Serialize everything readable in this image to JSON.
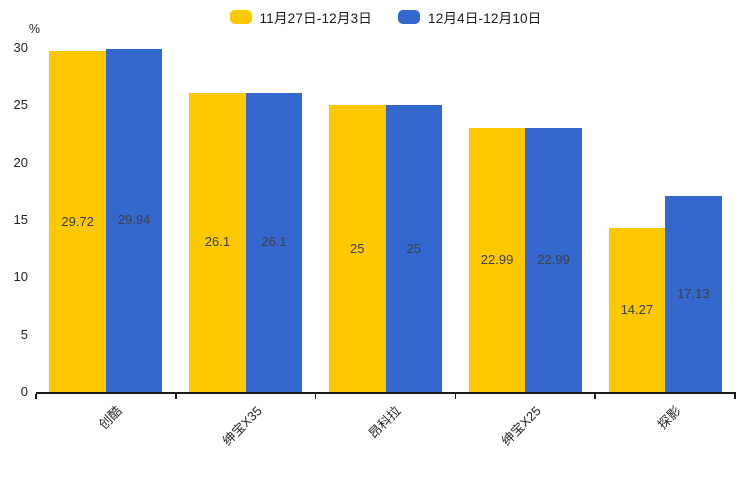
{
  "chart_data": {
    "type": "bar",
    "unit_label": "%",
    "categories": [
      "创酷",
      "绅宝X35",
      "昂科拉",
      "绅宝X25",
      "探影"
    ],
    "series": [
      {
        "name": "11月27日-12月3日",
        "color": "#FCC800",
        "values": [
          29.72,
          26.1,
          25,
          22.99,
          14.27
        ]
      },
      {
        "name": "12月4日-12月10日",
        "color": "#3568CE",
        "values": [
          29.94,
          26.1,
          25,
          22.99,
          17.13
        ]
      }
    ],
    "ylim": [
      0,
      30
    ],
    "yticks": [
      0,
      5,
      10,
      15,
      20,
      25,
      30
    ],
    "grid": false,
    "legend_position": "top",
    "value_labels_inside_bars": true
  },
  "colors": {
    "background": "#ffffff",
    "axis": "#1a1a1a",
    "tick_label_text": "#1f1f1f",
    "value_label_text": "#3f3f3f",
    "series_1": "#FCC800",
    "series_2": "#3568CE"
  }
}
